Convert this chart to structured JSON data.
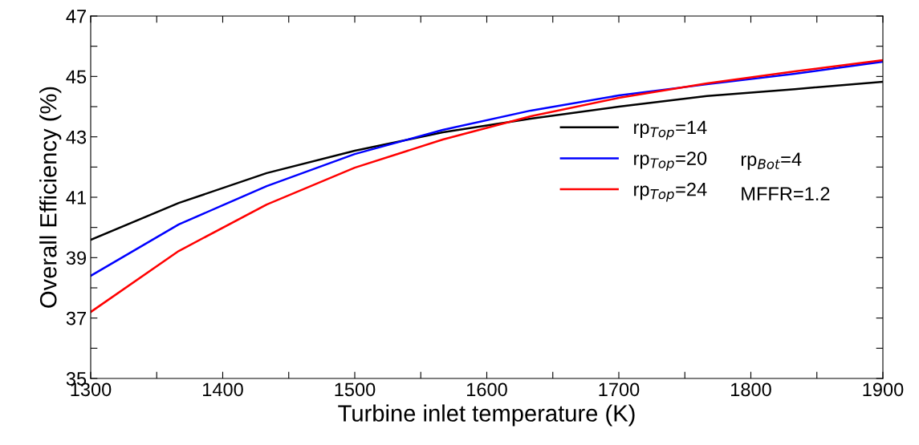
{
  "chart_data": {
    "type": "line",
    "xlabel": "Turbine inlet temperature (K)",
    "ylabel": "Overall Efficiency (%)",
    "x": [
      1300,
      1366.7,
      1433.3,
      1500,
      1566.7,
      1633.3,
      1700,
      1766.7,
      1833.3,
      1900
    ],
    "series": [
      {
        "name": "rp$_{Top}$=14",
        "color": "#000000",
        "values": [
          39.59,
          40.81,
          41.8,
          42.54,
          43.15,
          43.6,
          44.0,
          44.35,
          44.58,
          44.82
        ]
      },
      {
        "name": "rp$_{Top}$=20",
        "color": "#0000ff",
        "values": [
          38.4,
          40.1,
          41.37,
          42.43,
          43.23,
          43.87,
          44.37,
          44.74,
          45.09,
          45.49
        ]
      },
      {
        "name": "rp$_{Top}$=24",
        "color": "#ff0000",
        "values": [
          37.2,
          39.22,
          40.76,
          41.98,
          42.91,
          43.68,
          44.29,
          44.77,
          45.17,
          45.54
        ]
      }
    ],
    "xlim": [
      1300,
      1900
    ],
    "xticks": [
      1300,
      {
        "value": 1350,
        "label": null
      },
      1400,
      {
        "value": 1450,
        "label": null
      },
      1500,
      {
        "value": 1550,
        "label": null
      },
      1600,
      {
        "value": 1650,
        "label": null
      },
      1700,
      {
        "value": 1750,
        "label": null
      },
      1800,
      {
        "value": 1850,
        "label": null
      },
      1900
    ],
    "ylim": [
      35,
      47
    ],
    "yticks": [
      35,
      {
        "value": 36,
        "label": null
      },
      37,
      {
        "value": 38,
        "label": null
      },
      39,
      {
        "value": 40,
        "label": null
      },
      41,
      {
        "value": 42,
        "label": null
      },
      43,
      {
        "value": 44,
        "label": null
      },
      45,
      {
        "value": 46,
        "label": null
      },
      47
    ],
    "annotations": [
      "rp$_{Bot}$=4",
      "MFFR=1.2"
    ],
    "legend": "right",
    "grid": false,
    "marker": "none",
    "line_style": "solid"
  }
}
